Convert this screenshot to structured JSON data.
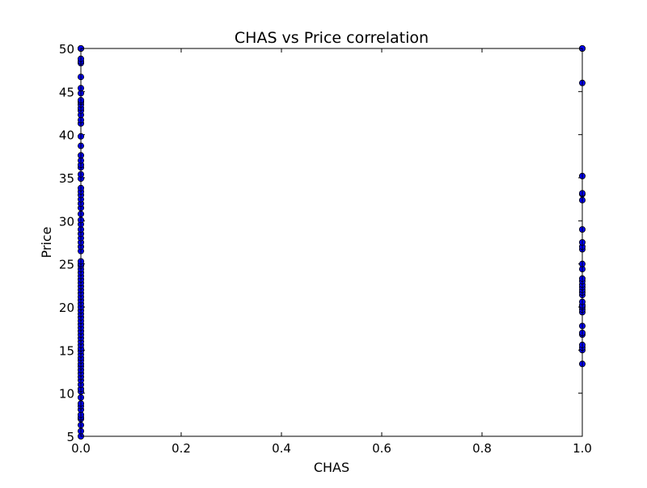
{
  "chart_data": {
    "type": "scatter",
    "title": "CHAS vs Price correlation",
    "xlabel": "CHAS",
    "ylabel": "Price",
    "xlim": [
      0.0,
      1.0
    ],
    "ylim": [
      5,
      50
    ],
    "xticks": [
      "0.0",
      "0.2",
      "0.4",
      "0.6",
      "0.8",
      "1.0"
    ],
    "yticks": [
      "5",
      "10",
      "15",
      "20",
      "25",
      "30",
      "35",
      "40",
      "45",
      "50"
    ],
    "grid": false,
    "marker_color": "#0000ff",
    "marker_edge_color": "#000000",
    "series": [
      {
        "x": [
          0,
          0,
          0,
          0,
          0,
          0,
          0,
          0,
          0,
          0,
          0,
          0,
          0,
          0,
          0,
          0,
          0,
          0,
          0,
          0,
          0,
          0,
          0,
          0,
          0,
          0,
          0,
          0,
          0,
          0,
          0,
          0,
          0,
          0,
          0,
          0,
          0,
          0,
          0,
          0,
          0,
          0,
          0,
          0,
          0,
          0,
          0,
          0,
          0,
          0,
          0,
          0,
          0,
          0,
          0,
          0,
          0,
          0,
          0,
          0,
          0,
          0,
          0,
          0,
          0,
          0,
          0,
          0,
          0,
          0,
          0,
          0,
          0,
          0,
          0,
          0,
          0,
          0,
          0,
          0,
          0,
          0,
          0,
          0,
          0,
          0,
          0,
          0,
          0,
          0,
          1,
          1,
          1,
          1,
          1,
          1,
          1,
          1,
          1,
          1,
          1,
          1,
          1,
          1,
          1,
          1,
          1,
          1,
          1,
          1,
          1,
          1,
          1,
          1,
          1,
          1,
          1,
          1,
          1,
          1,
          1,
          1
        ],
        "y": [
          5.0,
          5.6,
          6.3,
          7.0,
          7.2,
          7.5,
          8.1,
          8.5,
          8.8,
          9.5,
          10.2,
          10.5,
          11.0,
          11.5,
          11.9,
          12.3,
          12.7,
          13.1,
          13.4,
          13.8,
          14.1,
          14.5,
          14.9,
          15.2,
          15.6,
          16.0,
          16.4,
          16.8,
          17.2,
          17.6,
          18.0,
          18.4,
          18.8,
          19.2,
          19.6,
          20.0,
          20.4,
          20.8,
          21.2,
          21.6,
          22.0,
          22.4,
          22.8,
          23.2,
          23.6,
          24.0,
          24.4,
          24.8,
          25.0,
          25.3,
          26.5,
          27.0,
          27.5,
          28.0,
          28.5,
          29.0,
          29.6,
          30.1,
          30.8,
          31.5,
          32.0,
          32.5,
          33.0,
          33.4,
          33.8,
          34.9,
          35.4,
          36.2,
          36.5,
          37.0,
          37.6,
          38.7,
          39.8,
          41.3,
          41.7,
          42.3,
          42.8,
          43.1,
          43.5,
          43.8,
          44.0,
          44.8,
          45.4,
          46.7,
          48.3,
          48.5,
          48.8,
          50.0,
          50.0,
          50.0,
          13.4,
          15.0,
          15.3,
          15.6,
          16.8,
          17.0,
          17.8,
          19.4,
          19.7,
          20.0,
          20.2,
          20.6,
          21.4,
          21.7,
          22.0,
          22.3,
          22.6,
          23.0,
          23.3,
          24.4,
          25.0,
          26.7,
          27.0,
          27.5,
          29.0,
          32.4,
          33.1,
          33.2,
          35.2,
          46.0,
          50.0,
          50.0
        ]
      }
    ]
  }
}
